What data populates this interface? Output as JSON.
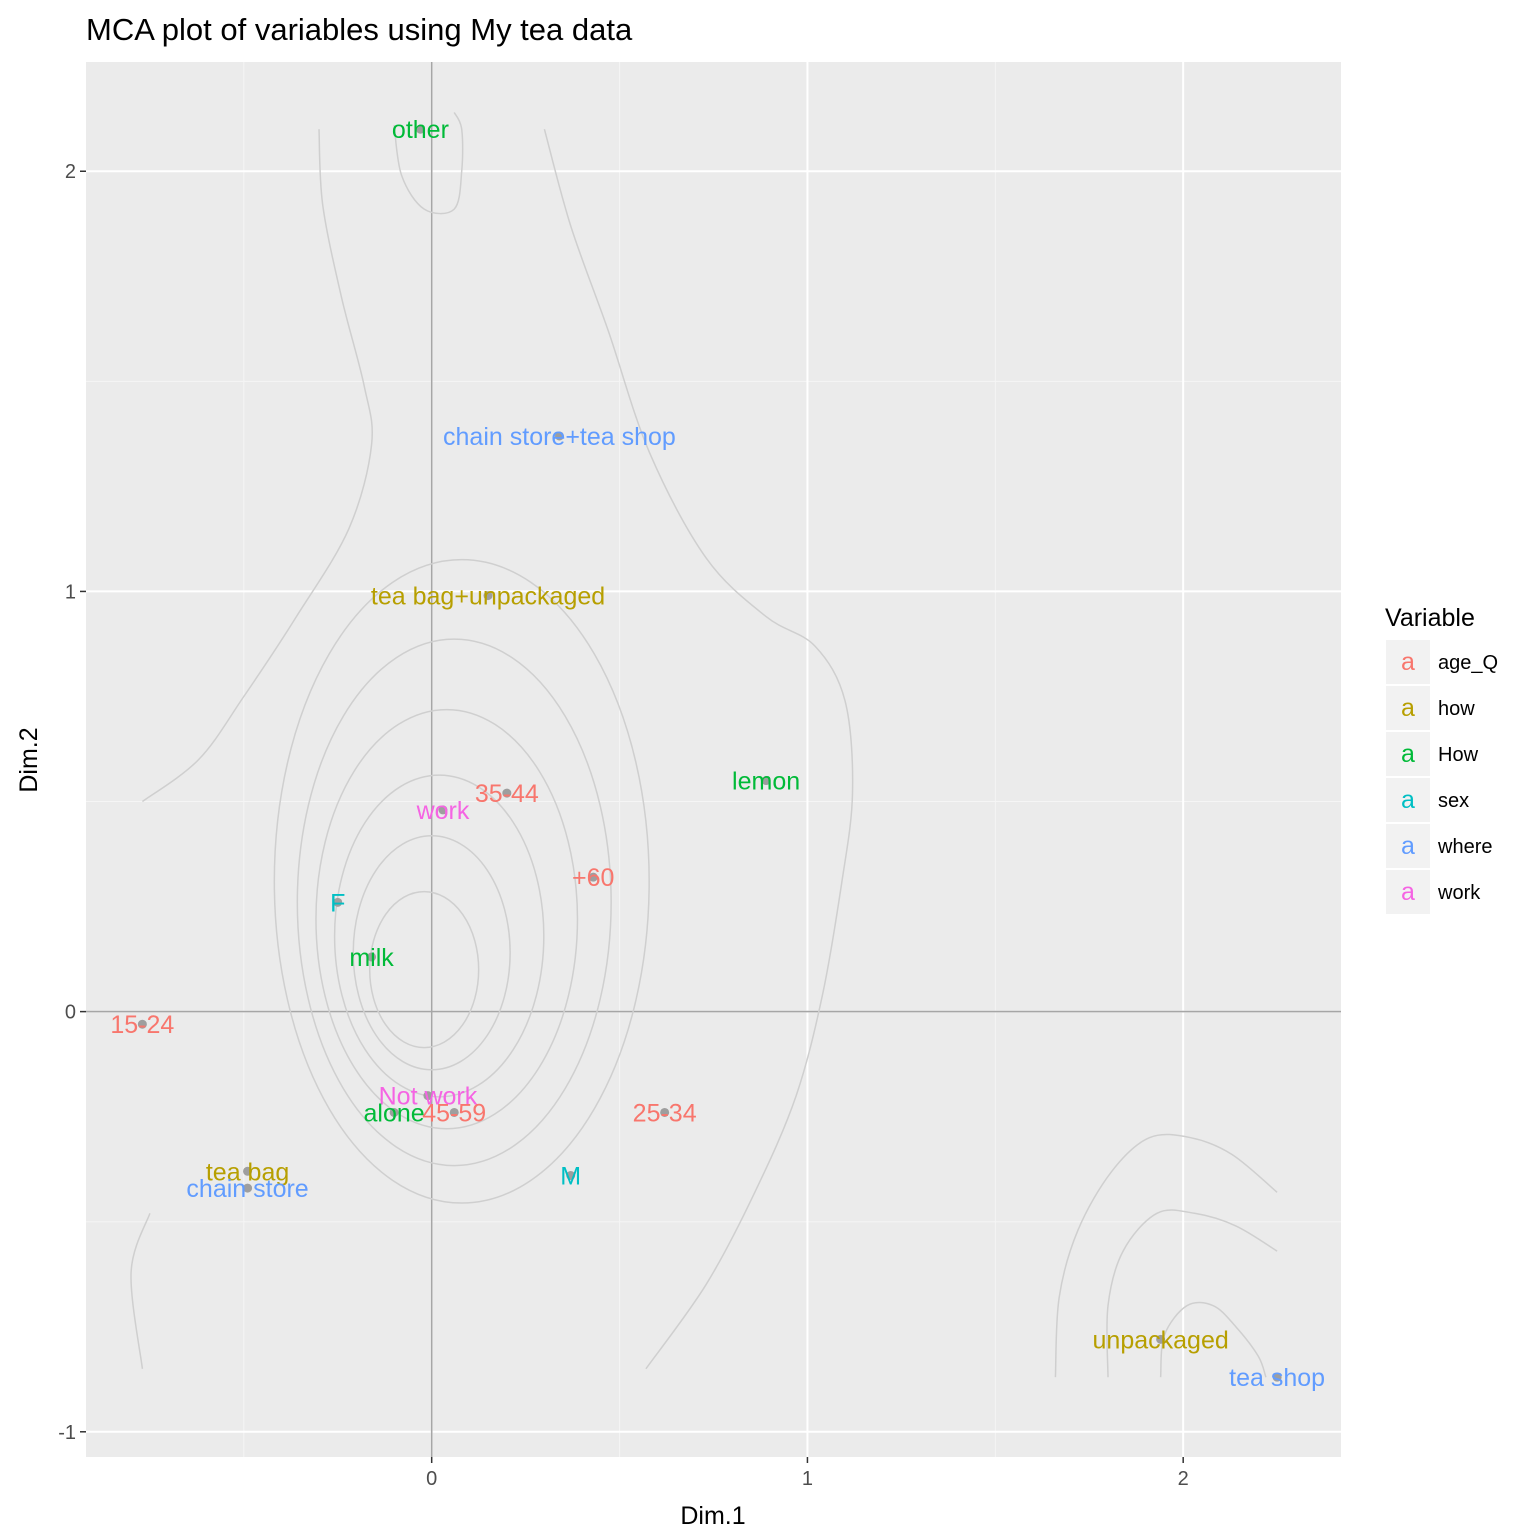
{
  "chart_data": {
    "type": "scatter",
    "title": "MCA plot of variables using My tea data",
    "xlabel": "Dim.1",
    "ylabel": "Dim.2",
    "xlim": [
      -0.92,
      2.42
    ],
    "ylim": [
      -1.06,
      2.26
    ],
    "x_ticks": [
      0,
      1,
      2
    ],
    "y_ticks": [
      -1,
      0,
      1,
      2
    ],
    "x_minor": [
      -0.5,
      0.5,
      1.5
    ],
    "y_minor": [
      -0.5,
      0.5,
      1.5
    ],
    "grid": true,
    "legend": {
      "title": "Variable",
      "position": "right",
      "glyph": "a",
      "entries": [
        {
          "name": "age_Q",
          "color": "#F8766D"
        },
        {
          "name": "how",
          "color": "#B79F00"
        },
        {
          "name": "How",
          "color": "#00BA38"
        },
        {
          "name": "sex",
          "color": "#00BFC4"
        },
        {
          "name": "where",
          "color": "#619CFF"
        },
        {
          "name": "work",
          "color": "#F564E3"
        }
      ]
    },
    "points": [
      {
        "label": "other",
        "group": "How",
        "x": -0.03,
        "y": 2.1
      },
      {
        "label": "chain store+tea shop",
        "group": "where",
        "x": 0.34,
        "y": 1.37
      },
      {
        "label": "tea bag+unpackaged",
        "group": "how",
        "x": 0.15,
        "y": 0.99
      },
      {
        "label": "lemon",
        "group": "How",
        "x": 0.89,
        "y": 0.55
      },
      {
        "label": "35-44",
        "group": "age_Q",
        "x": 0.2,
        "y": 0.52
      },
      {
        "label": "work",
        "group": "work",
        "x": 0.03,
        "y": 0.48
      },
      {
        "label": "+60",
        "group": "age_Q",
        "x": 0.43,
        "y": 0.32
      },
      {
        "label": "F",
        "group": "sex",
        "x": -0.25,
        "y": 0.26
      },
      {
        "label": "milk",
        "group": "How",
        "x": -0.16,
        "y": 0.13
      },
      {
        "label": "15-24",
        "group": "age_Q",
        "x": -0.77,
        "y": -0.03
      },
      {
        "label": "Not work",
        "group": "work",
        "x": -0.01,
        "y": -0.2
      },
      {
        "label": "alone",
        "group": "How",
        "x": -0.1,
        "y": -0.24
      },
      {
        "label": "45-59",
        "group": "age_Q",
        "x": 0.06,
        "y": -0.24
      },
      {
        "label": "25-34",
        "group": "age_Q",
        "x": 0.62,
        "y": -0.24
      },
      {
        "label": "M",
        "group": "sex",
        "x": 0.37,
        "y": -0.39
      },
      {
        "label": "tea bag",
        "group": "how",
        "x": -0.49,
        "y": -0.38
      },
      {
        "label": "chain store",
        "group": "where",
        "x": -0.49,
        "y": -0.42
      },
      {
        "label": "unpackaged",
        "group": "how",
        "x": 1.94,
        "y": -0.78
      },
      {
        "label": "tea shop",
        "group": "where",
        "x": 2.25,
        "y": -0.87
      }
    ],
    "density_contours": [
      [
        [
          -0.3,
          2.1
        ],
        [
          -0.29,
          1.92
        ],
        [
          -0.24,
          1.7
        ],
        [
          -0.18,
          1.49
        ],
        [
          -0.16,
          1.35
        ],
        [
          -0.22,
          1.15
        ],
        [
          -0.36,
          0.94
        ],
        [
          -0.5,
          0.75
        ],
        [
          -0.62,
          0.6
        ],
        [
          -0.77,
          0.5
        ]
      ],
      [
        [
          0.3,
          2.1
        ],
        [
          0.37,
          1.87
        ],
        [
          0.47,
          1.62
        ],
        [
          0.58,
          1.33
        ],
        [
          0.73,
          1.08
        ],
        [
          0.89,
          0.94
        ],
        [
          1.02,
          0.87
        ],
        [
          1.1,
          0.74
        ],
        [
          1.12,
          0.52
        ],
        [
          1.09,
          0.3
        ],
        [
          1.04,
          0.04
        ],
        [
          0.97,
          -0.2
        ],
        [
          0.86,
          -0.43
        ],
        [
          0.73,
          -0.65
        ],
        [
          0.57,
          -0.85
        ]
      ],
      [
        [
          -0.77,
          -0.85
        ],
        [
          -0.8,
          -0.62
        ],
        [
          -0.75,
          -0.48
        ]
      ],
      [
        [
          -0.1,
          2.11
        ],
        [
          -0.08,
          1.99
        ],
        [
          -0.02,
          1.91
        ],
        [
          0.06,
          1.91
        ],
        [
          0.08,
          2.0
        ],
        [
          0.08,
          2.1
        ],
        [
          0.06,
          2.14
        ]
      ],
      [
        [
          1.66,
          -0.87
        ],
        [
          1.67,
          -0.68
        ],
        [
          1.72,
          -0.52
        ],
        [
          1.81,
          -0.38
        ],
        [
          1.91,
          -0.3
        ],
        [
          2.02,
          -0.3
        ],
        [
          2.13,
          -0.34
        ],
        [
          2.25,
          -0.43
        ]
      ],
      [
        [
          1.8,
          -0.87
        ],
        [
          1.8,
          -0.7
        ],
        [
          1.84,
          -0.57
        ],
        [
          1.93,
          -0.48
        ],
        [
          2.03,
          -0.48
        ],
        [
          2.14,
          -0.51
        ],
        [
          2.25,
          -0.57
        ]
      ],
      [
        [
          1.94,
          -0.87
        ],
        [
          1.95,
          -0.77
        ],
        [
          2.01,
          -0.7
        ],
        [
          2.08,
          -0.7
        ],
        [
          2.14,
          -0.75
        ],
        [
          2.2,
          -0.82
        ],
        [
          2.22,
          -0.87
        ]
      ]
    ]
  }
}
